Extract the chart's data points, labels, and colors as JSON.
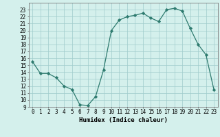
{
  "x": [
    0,
    1,
    2,
    3,
    4,
    5,
    6,
    7,
    8,
    9,
    10,
    11,
    12,
    13,
    14,
    15,
    16,
    17,
    18,
    19,
    20,
    21,
    22,
    23
  ],
  "y": [
    15.5,
    13.8,
    13.8,
    13.2,
    12.0,
    11.5,
    9.3,
    9.2,
    10.5,
    14.3,
    20.0,
    21.5,
    22.0,
    22.2,
    22.5,
    21.8,
    21.3,
    23.0,
    23.2,
    22.8,
    20.3,
    18.0,
    16.5,
    11.5
  ],
  "title": "",
  "xlabel": "Humidex (Indice chaleur)",
  "ylabel": "",
  "xlim": [
    -0.5,
    23.5
  ],
  "ylim": [
    9,
    24
  ],
  "yticks": [
    9,
    10,
    11,
    12,
    13,
    14,
    15,
    16,
    17,
    18,
    19,
    20,
    21,
    22,
    23
  ],
  "xticks": [
    0,
    1,
    2,
    3,
    4,
    5,
    6,
    7,
    8,
    9,
    10,
    11,
    12,
    13,
    14,
    15,
    16,
    17,
    18,
    19,
    20,
    21,
    22,
    23
  ],
  "line_color": "#2d7a6e",
  "marker_color": "#2d7a6e",
  "bg_color": "#d4f0ec",
  "grid_color": "#a0cccc",
  "label_fontsize": 6.5,
  "tick_fontsize": 5.5
}
